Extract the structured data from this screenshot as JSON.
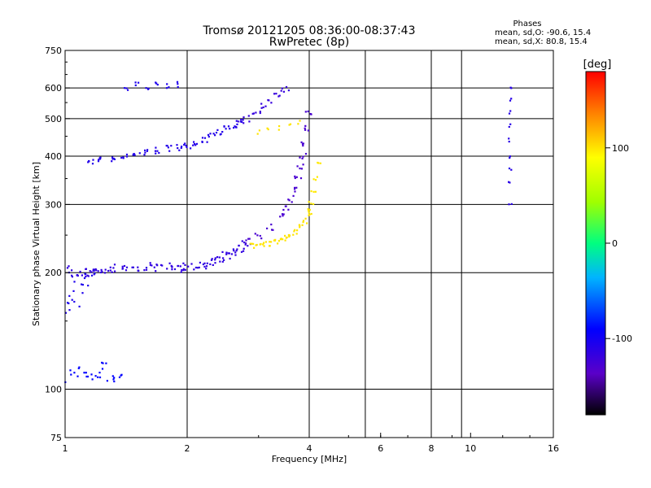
{
  "chart_data": {
    "type": "scatter",
    "title": "Tromsø 20121205 08:36:00-08:37:43",
    "subtitle": "RwPretec (8p)",
    "stats": {
      "title": "Phases",
      "line_o": "mean, sd,O: -90.6, 15.4",
      "line_x": "mean, sd,X:  80.8, 15.4"
    },
    "xlabel": "Frequency [MHz]",
    "ylabel": "Stationary phase Virtual Height [km]",
    "xscale": "log",
    "yscale": "log",
    "xlim": [
      1,
      16
    ],
    "ylim": [
      75,
      750
    ],
    "xticks": [
      1,
      2,
      4,
      6,
      8,
      10,
      16
    ],
    "xtick_labels": [
      "1",
      "2",
      "4",
      "6",
      "8",
      "10",
      "16"
    ],
    "yticks": [
      75,
      100,
      200,
      300,
      400,
      500,
      600,
      750
    ],
    "ytick_labels": [
      "75",
      "100",
      "200",
      "300",
      "400",
      "500",
      "600",
      "750"
    ],
    "x_gridlines": [
      2,
      4,
      5.5,
      8,
      9.5
    ],
    "y_gridlines": [
      100,
      200,
      300,
      400,
      500,
      600
    ],
    "grid": true,
    "colorbar": {
      "label": "[deg]",
      "range": [
        -180,
        180
      ],
      "ticks": [
        100,
        0,
        -100
      ],
      "tick_labels": [
        "100",
        "0",
        "-100"
      ]
    },
    "series": [
      {
        "traces": [
          {
            "x": [
              1.0,
              1.05,
              1.1,
              1.15,
              1.2,
              1.25,
              1.3,
              1.4,
              1.5,
              1.6,
              1.7,
              1.8,
              1.9,
              2.0,
              2.1,
              2.2,
              2.3,
              2.4,
              2.5,
              2.6,
              2.7,
              2.8
            ],
            "y": [
              205,
              200,
              200,
              200,
              202,
              204,
              205,
              206,
              207,
              207,
              207,
              207,
              206,
              207,
              208,
              210,
              213,
              217,
              221,
              226,
              231,
              236
            ],
            "phase": -115,
            "spread": 0.05,
            "reps": 6
          },
          {
            "x": [
              1.0,
              1.05,
              1.1,
              1.15
            ],
            "y": [
              175,
              165,
              185,
              195
            ],
            "phase": -105,
            "spread": 0.1,
            "reps": 5
          },
          {
            "x": [
              2.8,
              3.0,
              3.2,
              3.4,
              3.5,
              3.6,
              3.7,
              3.75,
              3.8,
              3.85,
              3.9,
              3.95,
              4.0
            ],
            "y": [
              240,
              250,
              262,
              280,
              295,
              310,
              330,
              350,
              375,
              400,
              430,
              470,
              520
            ],
            "phase": -128,
            "spread": 0.04,
            "reps": 4
          },
          {
            "x": [
              1.15,
              1.2,
              1.3,
              1.4,
              1.5,
              1.6,
              1.7,
              1.8,
              1.9,
              2.0,
              2.1,
              2.2,
              2.3,
              2.4,
              2.5,
              2.6,
              2.7
            ],
            "y": [
              390,
              392,
              395,
              400,
              405,
              410,
              414,
              418,
              420,
              424,
              430,
              440,
              450,
              460,
              470,
              480,
              488
            ],
            "phase": -108,
            "spread": 0.04,
            "reps": 5
          },
          {
            "x": [
              2.7,
              2.8,
              2.9,
              3.0,
              3.1,
              3.2,
              3.3,
              3.4,
              3.5
            ],
            "y": [
              490,
              500,
              510,
              525,
              540,
              555,
              570,
              585,
              600
            ],
            "phase": -118,
            "spread": 0.04,
            "reps": 3
          },
          {
            "x": [
              1.4,
              1.5,
              1.6,
              1.7,
              1.8,
              1.9
            ],
            "y": [
              600,
              610,
              605,
              610,
              612,
              615
            ],
            "phase": -105,
            "spread": 0.04,
            "reps": 3
          },
          {
            "x": [
              1.0,
              1.05,
              1.1,
              1.15,
              1.2,
              1.25,
              1.3,
              1.35
            ],
            "y": [
              105,
              110,
              112,
              108,
              110,
              115,
              107,
              109
            ],
            "phase": -90,
            "spread": 0.05,
            "reps": 4
          },
          {
            "x": [
              2.9,
              3.0,
              3.1,
              3.2,
              3.3,
              3.4,
              3.5,
              3.6,
              3.7,
              3.8,
              3.9,
              4.0
            ],
            "y": [
              235,
              236,
              237,
              238,
              240,
              243,
              246,
              250,
              256,
              263,
              272,
              285
            ],
            "phase": 100,
            "spread": 0.03,
            "reps": 4
          },
          {
            "x": [
              4.0,
              4.05,
              4.1,
              4.15,
              4.2
            ],
            "y": [
              290,
              305,
              325,
              350,
              385
            ],
            "phase": 98,
            "spread": 0.03,
            "reps": 3
          },
          {
            "x": [
              3.0,
              3.2,
              3.4,
              3.6,
              3.8
            ],
            "y": [
              460,
              468,
              472,
              485,
              490
            ],
            "phase": 100,
            "spread": 0.03,
            "reps": 2
          },
          {
            "x": [
              12.5,
              12.5,
              12.5,
              12.5,
              12.5,
              12.5,
              12.5,
              12.5,
              12.5
            ],
            "y": [
              600,
              560,
              520,
              480,
              440,
              400,
              370,
              340,
              300
            ],
            "phase": -110,
            "spread": 0.02,
            "reps": 2
          }
        ]
      }
    ]
  }
}
